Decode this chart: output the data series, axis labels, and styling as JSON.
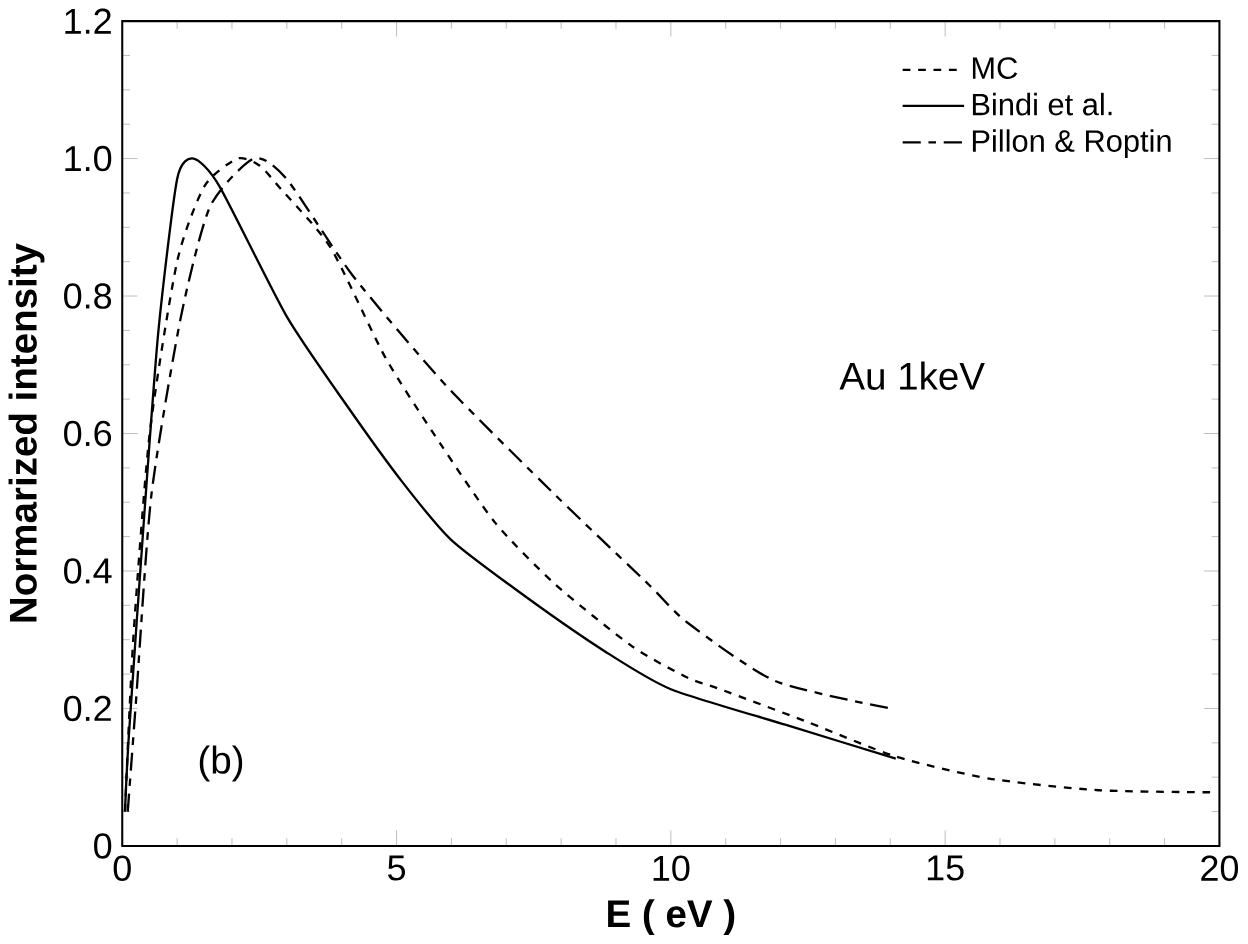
{
  "chart_data": {
    "type": "line",
    "xlabel": "E  ( eV )",
    "ylabel": "Normarized intensity",
    "xlim": [
      0,
      20
    ],
    "ylim": [
      0,
      1.2
    ],
    "xticks": [
      0,
      5,
      10,
      15,
      20
    ],
    "yticks": [
      0,
      0.2,
      0.4,
      0.6,
      0.8,
      {
        "value": 1,
        "label": "1.0"
      },
      1.2
    ],
    "legend": "top right",
    "grid": false,
    "annotations": [
      "Au   1keV",
      "(b)"
    ],
    "series": [
      {
        "name": "MC",
        "color": "#000000",
        "line_style": "dashed",
        "x": [
          0.05,
          0.2,
          0.5,
          1.0,
          1.5,
          2.1,
          2.5,
          2.9,
          3.8,
          4.8,
          5.8,
          6.8,
          7.9,
          9.3,
          10.3,
          10.9,
          12.5,
          14.1,
          15.8,
          17.8,
          19.9
        ],
        "values": [
          0.05,
          0.3,
          0.6,
          0.85,
          0.96,
          1.0,
          0.99,
          0.955,
          0.87,
          0.71,
          0.585,
          0.47,
          0.38,
          0.29,
          0.245,
          0.228,
          0.18,
          0.13,
          0.098,
          0.081,
          0.078
        ]
      },
      {
        "name": "Bindi et al.",
        "color": "#000000",
        "line_style": "solid",
        "x": [
          0.05,
          0.12,
          0.4,
          0.66,
          1.0,
          1.3,
          1.77,
          3.0,
          4.1,
          5.1,
          6.0,
          7.4,
          8.8,
          10.0,
          12.1,
          14.1
        ],
        "values": [
          0.05,
          0.16,
          0.48,
          0.75,
          0.97,
          1.0,
          0.96,
          0.77,
          0.64,
          0.53,
          0.445,
          0.36,
          0.283,
          0.228,
          0.176,
          0.127
        ]
      },
      {
        "name": "Pillon & Roptin",
        "color": "#000000",
        "line_style": "dashdot",
        "x": [
          0.1,
          0.25,
          0.53,
          1.07,
          1.6,
          2.4,
          3.0,
          4.2,
          5.9,
          7.9,
          9.6,
          10.3,
          11.9,
          14.0
        ],
        "values": [
          0.05,
          0.21,
          0.51,
          0.77,
          0.93,
          1.0,
          0.97,
          0.83,
          0.67,
          0.51,
          0.38,
          0.325,
          0.24,
          0.2
        ]
      }
    ]
  }
}
